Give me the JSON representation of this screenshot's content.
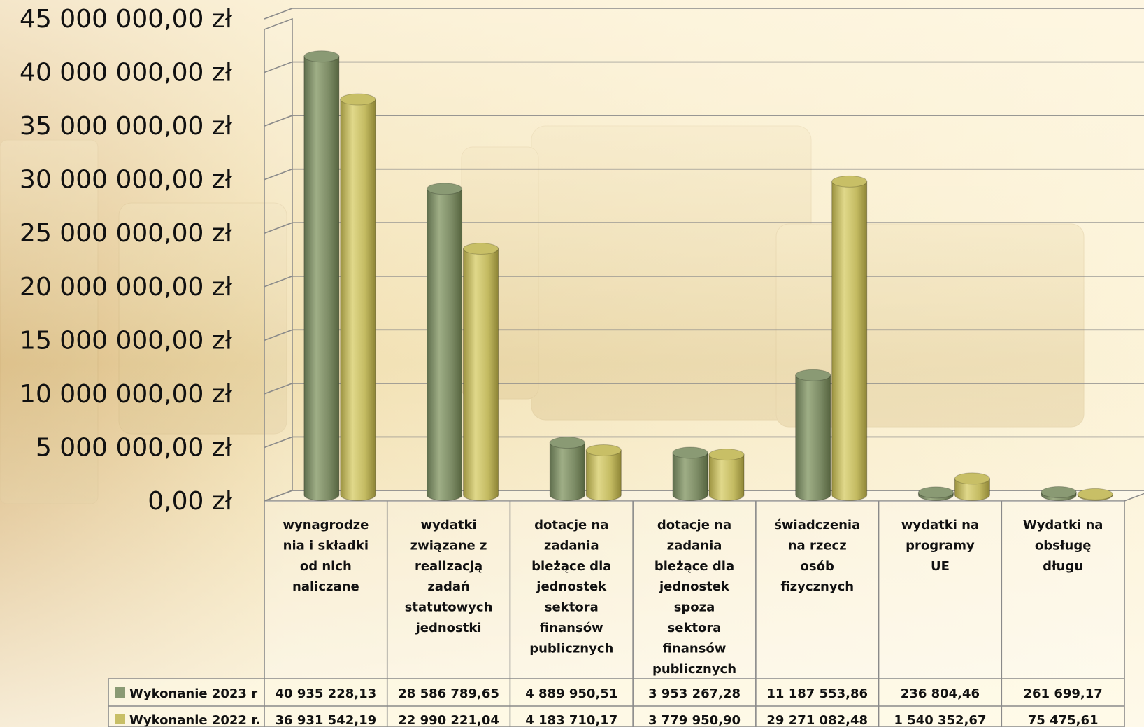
{
  "colors": {
    "series_2023": "#8a9a74",
    "series_2022": "#c8bf66",
    "grid": "#8a8a8a",
    "background_light": "#fbf2cf",
    "background_warm": "#e2c489"
  },
  "chart_data": {
    "type": "bar",
    "style": "3d-cylinder",
    "grid": true,
    "legend_placement": "data-table-left",
    "ylim": [
      0,
      45000000
    ],
    "yticks": [
      "0,00 zł",
      "5 000 000,00 zł",
      "10 000 000,00 zł",
      "15 000 000,00 zł",
      "20 000 000,00 zł",
      "25 000 000,00 zł",
      "30 000 000,00 zł",
      "35 000 000,00 zł",
      "40 000 000,00 zł",
      "45 000 000,00 zł"
    ],
    "categories": [
      [
        "wynagrodze",
        "nia i składki",
        "od nich",
        "naliczane"
      ],
      [
        "wydatki",
        "związane z",
        "realizacją",
        "zadań",
        "statutowych",
        "jednostki"
      ],
      [
        "dotacje na",
        "zadania",
        "bieżące dla",
        "jednostek",
        "sektora",
        "finansów",
        "publicznych"
      ],
      [
        "dotacje na",
        "zadania",
        "bieżące dla",
        "jednostek",
        "spoza",
        "sektora",
        "finansów",
        "publicznych"
      ],
      [
        "świadczenia",
        "na rzecz",
        "osób",
        "fizycznych"
      ],
      [
        "wydatki na",
        "programy",
        "UE"
      ],
      [
        "Wydatki na",
        "obsługę",
        "długu"
      ]
    ],
    "series": [
      {
        "name": "Wykonanie 2023 r",
        "values": [
          40935228.13,
          28586789.65,
          4889950.51,
          3953267.28,
          11187553.86,
          236804.46,
          261699.17
        ],
        "labels": [
          "40 935 228,13",
          "28 586 789,65",
          "4 889 950,51",
          "3 953 267,28",
          "11 187 553,86",
          "236 804,46",
          "261 699,17"
        ]
      },
      {
        "name": "Wykonanie 2022 r.",
        "values": [
          36931542.19,
          22990221.04,
          4183710.17,
          3779950.9,
          29271082.48,
          1540352.67,
          75475.61
        ],
        "labels": [
          "36 931 542,19",
          "22 990 221,04",
          "4 183 710,17",
          "3 779 950,90",
          "29 271 082,48",
          "1 540 352,67",
          "75 475,61"
        ]
      }
    ]
  }
}
